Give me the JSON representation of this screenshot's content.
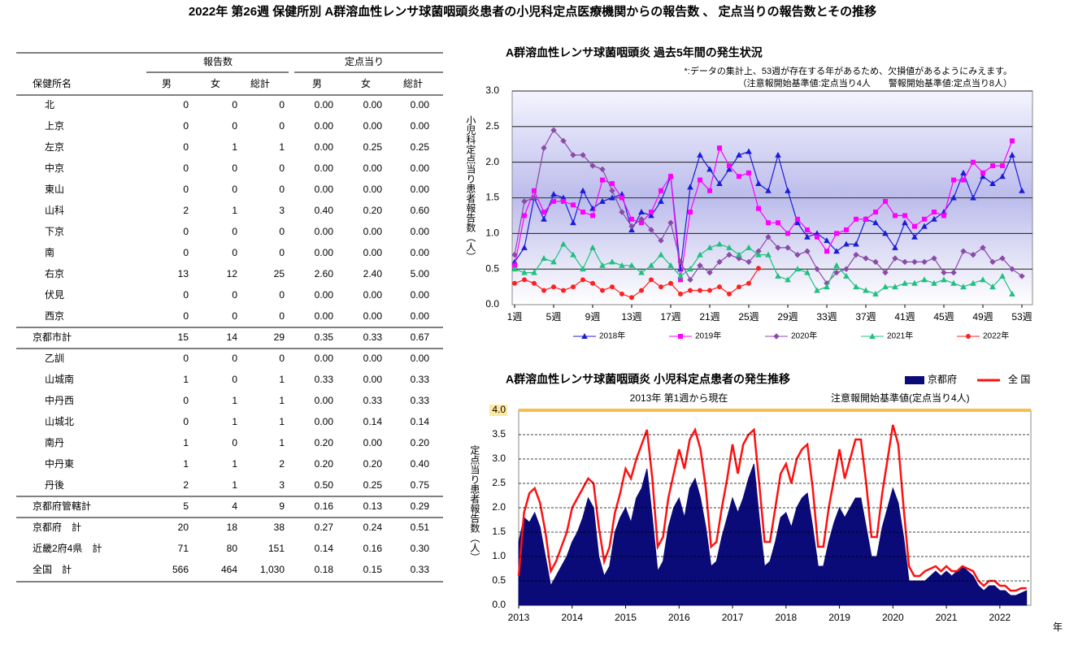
{
  "title": "2022年 第26週 保健所別 A群溶血性レンサ球菌咽頭炎患者の小児科定点医療機関からの報告数 、 定点当りの報告数とその推移",
  "table": {
    "group_headers": [
      "報告数",
      "定点当り"
    ],
    "columns": [
      "保健所名",
      "男",
      "女",
      "総計",
      "男",
      "女",
      "総計"
    ],
    "rows": [
      [
        "北",
        "0",
        "0",
        "0",
        "0.00",
        "0.00",
        "0.00"
      ],
      [
        "上京",
        "0",
        "0",
        "0",
        "0.00",
        "0.00",
        "0.00"
      ],
      [
        "左京",
        "0",
        "1",
        "1",
        "0.00",
        "0.25",
        "0.25"
      ],
      [
        "中京",
        "0",
        "0",
        "0",
        "0.00",
        "0.00",
        "0.00"
      ],
      [
        "東山",
        "0",
        "0",
        "0",
        "0.00",
        "0.00",
        "0.00"
      ],
      [
        "山科",
        "2",
        "1",
        "3",
        "0.40",
        "0.20",
        "0.60"
      ],
      [
        "下京",
        "0",
        "0",
        "0",
        "0.00",
        "0.00",
        "0.00"
      ],
      [
        "南",
        "0",
        "0",
        "0",
        "0.00",
        "0.00",
        "0.00"
      ],
      [
        "右京",
        "13",
        "12",
        "25",
        "2.60",
        "2.40",
        "5.00"
      ],
      [
        "伏見",
        "0",
        "0",
        "0",
        "0.00",
        "0.00",
        "0.00"
      ],
      [
        "西京",
        "0",
        "0",
        "0",
        "0.00",
        "0.00",
        "0.00"
      ],
      [
        "京都市計",
        "15",
        "14",
        "29",
        "0.35",
        "0.33",
        "0.67"
      ],
      [
        "乙訓",
        "0",
        "0",
        "0",
        "0.00",
        "0.00",
        "0.00"
      ],
      [
        "山城南",
        "1",
        "0",
        "1",
        "0.33",
        "0.00",
        "0.33"
      ],
      [
        "中丹西",
        "0",
        "1",
        "1",
        "0.00",
        "0.33",
        "0.33"
      ],
      [
        "山城北",
        "0",
        "1",
        "1",
        "0.00",
        "0.14",
        "0.14"
      ],
      [
        "南丹",
        "1",
        "0",
        "1",
        "0.20",
        "0.00",
        "0.20"
      ],
      [
        "中丹東",
        "1",
        "1",
        "2",
        "0.20",
        "0.20",
        "0.40"
      ],
      [
        "丹後",
        "2",
        "1",
        "3",
        "0.50",
        "0.25",
        "0.75"
      ],
      [
        "京都府管轄計",
        "5",
        "4",
        "9",
        "0.16",
        "0.13",
        "0.29"
      ],
      [
        "京都府　計",
        "20",
        "18",
        "38",
        "0.27",
        "0.24",
        "0.51"
      ],
      [
        "近畿2府4県　計",
        "71",
        "80",
        "151",
        "0.14",
        "0.16",
        "0.30"
      ],
      [
        "全国　計",
        "566",
        "464",
        "1,030",
        "0.18",
        "0.15",
        "0.33"
      ]
    ]
  },
  "chart_data": [
    {
      "type": "line",
      "title": "A群溶血性レンサ球菌咽頭炎 過去5年間の発生状況",
      "notes": [
        "*:データの集計上、53週が存在する年があるため、欠損値があるようにみえます。",
        "（注意報開始基準値:定点当り4人　　警報開始基準値:定点当り8人）"
      ],
      "y_label": "小児科定点当り患者報告数（人）",
      "x": [
        1,
        2,
        3,
        4,
        5,
        6,
        7,
        8,
        9,
        10,
        11,
        12,
        13,
        14,
        15,
        16,
        17,
        18,
        19,
        20,
        21,
        22,
        23,
        24,
        25,
        26,
        27,
        28,
        29,
        30,
        31,
        32,
        33,
        34,
        35,
        36,
        37,
        38,
        39,
        40,
        41,
        42,
        43,
        44,
        45,
        46,
        47,
        48,
        49,
        50,
        51,
        52,
        53
      ],
      "xlim": [
        1,
        53
      ],
      "xticks": [
        {
          "value": 1,
          "label": "1週"
        },
        {
          "value": 5,
          "label": "5週"
        },
        {
          "value": 9,
          "label": "9週"
        },
        {
          "value": 13,
          "label": "13週"
        },
        {
          "value": 17,
          "label": "17週"
        },
        {
          "value": 21,
          "label": "21週"
        },
        {
          "value": 25,
          "label": "25週"
        },
        {
          "value": 29,
          "label": "29週"
        },
        {
          "value": 33,
          "label": "33週"
        },
        {
          "value": 37,
          "label": "37週"
        },
        {
          "value": 41,
          "label": "41週"
        },
        {
          "value": 45,
          "label": "45週"
        },
        {
          "value": 49,
          "label": "49週"
        },
        {
          "value": 53,
          "label": "53週"
        }
      ],
      "ylim": [
        0,
        3
      ],
      "yticks": [
        {
          "value": 0,
          "label": "0.0"
        },
        {
          "value": 0.5,
          "label": "0.5"
        },
        {
          "value": 1,
          "label": "1.0"
        },
        {
          "value": 1.5,
          "label": "1.5"
        },
        {
          "value": 2,
          "label": "2.0"
        },
        {
          "value": 2.5,
          "label": "2.5"
        },
        {
          "value": 3,
          "label": "3.0"
        }
      ],
      "grid": true,
      "legend": "bottom",
      "series": [
        {
          "name": "2018年",
          "color": "#1c1cd8",
          "marker": "triangle",
          "values": [
            0.6,
            0.8,
            1.5,
            1.2,
            1.55,
            1.5,
            1.15,
            1.6,
            1.35,
            1.45,
            1.5,
            1.55,
            1.05,
            1.3,
            1.25,
            1.45,
            1.8,
            0.5,
            1.65,
            2.1,
            1.9,
            1.7,
            1.9,
            2.1,
            2.15,
            1.7,
            1.6,
            2.1,
            1.6,
            1.15,
            0.95,
            1.0,
            0.9,
            0.75,
            0.85,
            0.85,
            1.2,
            1.15,
            1.0,
            0.8,
            1.15,
            0.95,
            1.1,
            1.2,
            1.3,
            1.5,
            1.85,
            1.5,
            1.8,
            1.7,
            1.8,
            2.1,
            1.6
          ]
        },
        {
          "name": "2019年",
          "color": "#ff00ff",
          "marker": "square",
          "values": [
            0.55,
            1.25,
            1.6,
            1.3,
            1.45,
            1.45,
            1.4,
            1.3,
            1.25,
            1.75,
            1.7,
            1.5,
            1.2,
            1.15,
            1.3,
            1.6,
            1.8,
            0.35,
            1.3,
            1.75,
            1.6,
            2.2,
            1.95,
            1.8,
            1.85,
            1.35,
            1.15,
            1.15,
            1.0,
            1.2,
            1.05,
            0.95,
            0.75,
            1.0,
            1.05,
            1.2,
            1.2,
            1.3,
            1.45,
            1.25,
            1.25,
            1.1,
            1.2,
            1.3,
            1.25,
            1.75,
            1.75,
            2.0,
            1.85,
            1.95,
            1.95,
            2.3,
            null
          ]
        },
        {
          "name": "2020年",
          "color": "#8a4aa8",
          "marker": "diamond",
          "values": [
            0.7,
            1.45,
            1.5,
            2.2,
            2.45,
            2.3,
            2.1,
            2.1,
            1.95,
            1.9,
            1.6,
            1.3,
            1.1,
            1.2,
            1.05,
            0.9,
            1.15,
            0.6,
            0.35,
            0.55,
            0.45,
            0.6,
            0.7,
            0.65,
            0.6,
            0.75,
            0.95,
            0.8,
            0.8,
            0.7,
            0.75,
            0.5,
            0.3,
            0.45,
            0.5,
            0.7,
            0.65,
            0.6,
            0.45,
            0.65,
            0.6,
            0.6,
            0.6,
            0.65,
            0.45,
            0.45,
            0.75,
            0.7,
            0.8,
            0.6,
            0.65,
            0.5,
            0.4
          ]
        },
        {
          "name": "2021年",
          "color": "#20c080",
          "marker": "triangle",
          "values": [
            0.5,
            0.45,
            0.45,
            0.65,
            0.6,
            0.85,
            0.7,
            0.5,
            0.8,
            0.55,
            0.6,
            0.55,
            0.55,
            0.45,
            0.55,
            0.7,
            0.55,
            0.4,
            0.5,
            0.7,
            0.8,
            0.85,
            0.8,
            0.7,
            0.8,
            0.7,
            0.7,
            0.4,
            0.35,
            0.5,
            0.45,
            0.2,
            0.25,
            0.55,
            0.4,
            0.25,
            0.2,
            0.15,
            0.25,
            0.25,
            0.3,
            0.3,
            0.35,
            0.3,
            0.35,
            0.3,
            0.25,
            0.3,
            0.35,
            0.25,
            0.4,
            0.15,
            null
          ]
        },
        {
          "name": "2022年",
          "color": "#ff2020",
          "marker": "circle",
          "values": [
            0.3,
            0.35,
            0.3,
            0.2,
            0.25,
            0.2,
            0.25,
            0.35,
            0.3,
            0.2,
            0.25,
            0.15,
            0.1,
            0.2,
            0.35,
            0.25,
            0.3,
            0.15,
            0.2,
            0.2,
            0.2,
            0.25,
            0.15,
            0.25,
            0.3,
            0.51,
            null,
            null,
            null,
            null,
            null,
            null,
            null,
            null,
            null,
            null,
            null,
            null,
            null,
            null,
            null,
            null,
            null,
            null,
            null,
            null,
            null,
            null,
            null,
            null,
            null,
            null,
            null
          ]
        }
      ]
    },
    {
      "type": "area",
      "title": "A群溶血性レンサ球菌咽頭炎 小児科定点患者の発生推移",
      "subtitle": "2013年 第1週から現在",
      "note": "注意報開始基準値(定点当り4人)",
      "y_label": "定点当り患者報告数（人）",
      "x_label": "年",
      "x": [
        2013,
        2013.1,
        2013.2,
        2013.3,
        2013.4,
        2013.5,
        2013.6,
        2013.7,
        2013.8,
        2013.9,
        2014,
        2014.1,
        2014.2,
        2014.3,
        2014.4,
        2014.5,
        2014.6,
        2014.7,
        2014.8,
        2014.9,
        2015,
        2015.1,
        2015.2,
        2015.3,
        2015.4,
        2015.5,
        2015.6,
        2015.7,
        2015.8,
        2015.9,
        2016,
        2016.1,
        2016.2,
        2016.3,
        2016.4,
        2016.5,
        2016.6,
        2016.7,
        2016.8,
        2016.9,
        2017,
        2017.1,
        2017.2,
        2017.3,
        2017.4,
        2017.5,
        2017.6,
        2017.7,
        2017.8,
        2017.9,
        2018,
        2018.1,
        2018.2,
        2018.3,
        2018.4,
        2018.5,
        2018.6,
        2018.7,
        2018.8,
        2018.9,
        2019,
        2019.1,
        2019.2,
        2019.3,
        2019.4,
        2019.5,
        2019.6,
        2019.7,
        2019.8,
        2019.9,
        2020,
        2020.1,
        2020.2,
        2020.3,
        2020.4,
        2020.5,
        2020.6,
        2020.7,
        2020.8,
        2020.9,
        2021,
        2021.1,
        2021.2,
        2021.3,
        2021.4,
        2021.5,
        2021.6,
        2021.7,
        2021.8,
        2021.9,
        2022,
        2022.1,
        2022.2,
        2022.3,
        2022.4,
        2022.5
      ],
      "xlim": [
        2013,
        2022.58
      ],
      "xticks": [
        2013,
        2014,
        2015,
        2016,
        2017,
        2018,
        2019,
        2020,
        2021,
        2022
      ],
      "ylim": [
        0,
        4
      ],
      "yticks": [
        {
          "value": 0,
          "label": "0.0"
        },
        {
          "value": 0.5,
          "label": "0.5"
        },
        {
          "value": 1,
          "label": "1.0"
        },
        {
          "value": 1.5,
          "label": "1.5"
        },
        {
          "value": 2,
          "label": "2.0"
        },
        {
          "value": 2.5,
          "label": "2.5"
        },
        {
          "value": 3,
          "label": "3.0"
        },
        {
          "value": 3.5,
          "label": "3.5"
        },
        {
          "value": 4,
          "label": "4.0"
        }
      ],
      "grid": true,
      "threshold": 4,
      "threshold_color": "#f5c04a",
      "legend": "top-right",
      "series": [
        {
          "name": "京都府",
          "color": "#0a0a78",
          "kind": "area",
          "values": [
            1.3,
            1.8,
            1.7,
            1.9,
            1.6,
            1.0,
            0.4,
            0.6,
            0.8,
            1.0,
            1.3,
            1.5,
            1.8,
            2.2,
            2.0,
            1.0,
            0.6,
            0.8,
            1.5,
            1.8,
            2.0,
            1.7,
            2.2,
            2.4,
            2.8,
            1.8,
            0.7,
            0.9,
            1.6,
            2.0,
            2.2,
            1.8,
            2.4,
            2.6,
            2.2,
            1.6,
            0.8,
            0.9,
            1.4,
            1.8,
            2.2,
            1.9,
            2.2,
            2.6,
            2.9,
            1.8,
            0.8,
            0.9,
            1.3,
            1.8,
            1.9,
            1.6,
            2.0,
            2.2,
            2.3,
            1.6,
            0.8,
            0.8,
            1.3,
            1.7,
            2.0,
            1.8,
            2.0,
            2.2,
            2.2,
            1.6,
            1.0,
            1.0,
            1.6,
            2.0,
            2.4,
            2.1,
            1.4,
            0.5,
            0.5,
            0.5,
            0.5,
            0.6,
            0.7,
            0.6,
            0.7,
            0.6,
            0.7,
            0.8,
            0.7,
            0.6,
            0.4,
            0.3,
            0.4,
            0.4,
            0.3,
            0.3,
            0.2,
            0.2,
            0.25,
            0.3
          ]
        },
        {
          "name": "全 国",
          "color": "#ff1010",
          "kind": "line",
          "values": [
            0.6,
            1.9,
            2.3,
            2.4,
            2.1,
            1.5,
            0.7,
            0.9,
            1.2,
            1.5,
            2.0,
            2.2,
            2.4,
            2.6,
            2.5,
            1.6,
            0.9,
            1.2,
            1.9,
            2.3,
            2.8,
            2.6,
            3.0,
            3.3,
            3.6,
            2.6,
            1.2,
            1.4,
            2.2,
            2.7,
            3.2,
            2.8,
            3.4,
            3.6,
            3.2,
            2.4,
            1.2,
            1.3,
            2.0,
            2.6,
            3.3,
            2.7,
            3.3,
            3.5,
            3.6,
            2.5,
            1.3,
            1.3,
            2.0,
            2.7,
            2.9,
            2.5,
            3.0,
            3.2,
            3.3,
            2.4,
            1.2,
            1.2,
            2.0,
            2.6,
            3.2,
            2.6,
            3.0,
            3.4,
            3.4,
            2.5,
            1.4,
            1.4,
            2.3,
            3.0,
            3.7,
            3.3,
            2.0,
            0.8,
            0.6,
            0.6,
            0.7,
            0.75,
            0.8,
            0.7,
            0.8,
            0.7,
            0.7,
            0.8,
            0.75,
            0.7,
            0.5,
            0.4,
            0.5,
            0.5,
            0.4,
            0.4,
            0.3,
            0.3,
            0.35,
            0.35
          ]
        }
      ]
    }
  ]
}
